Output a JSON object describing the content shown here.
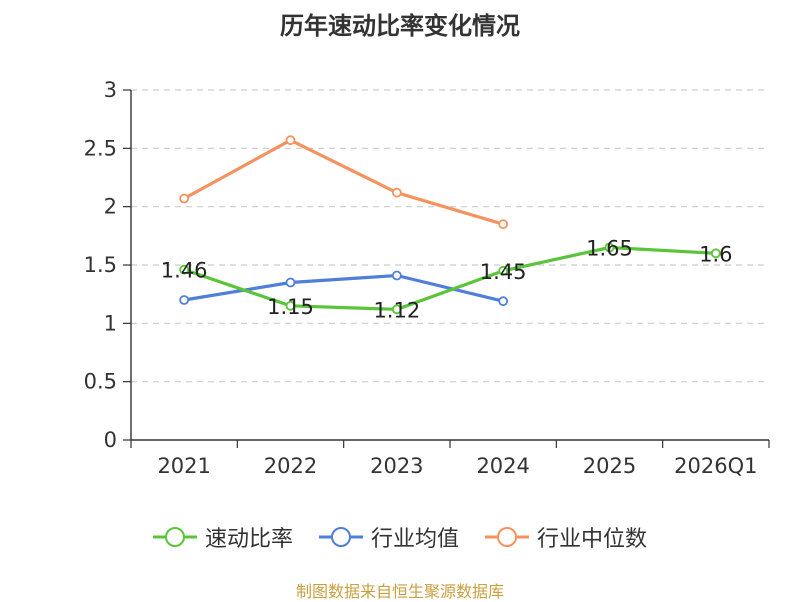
{
  "chart_data": {
    "type": "line",
    "title": "历年速动比率变化情况",
    "categories": [
      "2021",
      "2022",
      "2023",
      "2024",
      "2025",
      "2026Q1"
    ],
    "ylim": [
      0,
      3
    ],
    "yticks": [
      "0",
      "0.5",
      "1",
      "1.5",
      "2",
      "2.5",
      "3"
    ],
    "grid": true,
    "legend_position": "bottom",
    "series": [
      {
        "name": "速动比率",
        "color": "#5ac43a",
        "values": [
          1.46,
          1.15,
          1.12,
          1.45,
          1.65,
          1.6
        ],
        "labels": [
          "1.46",
          "1.15",
          "1.12",
          "1.45",
          "1.65",
          "1.6"
        ]
      },
      {
        "name": "行业均值",
        "color": "#4f7fd9",
        "values": [
          1.2,
          1.35,
          1.41,
          1.19,
          null,
          null
        ]
      },
      {
        "name": "行业中位数",
        "color": "#f4935f",
        "values": [
          2.07,
          2.57,
          2.12,
          1.85,
          null,
          null
        ]
      }
    ]
  },
  "source": "制图数据来自恒生聚源数据库"
}
